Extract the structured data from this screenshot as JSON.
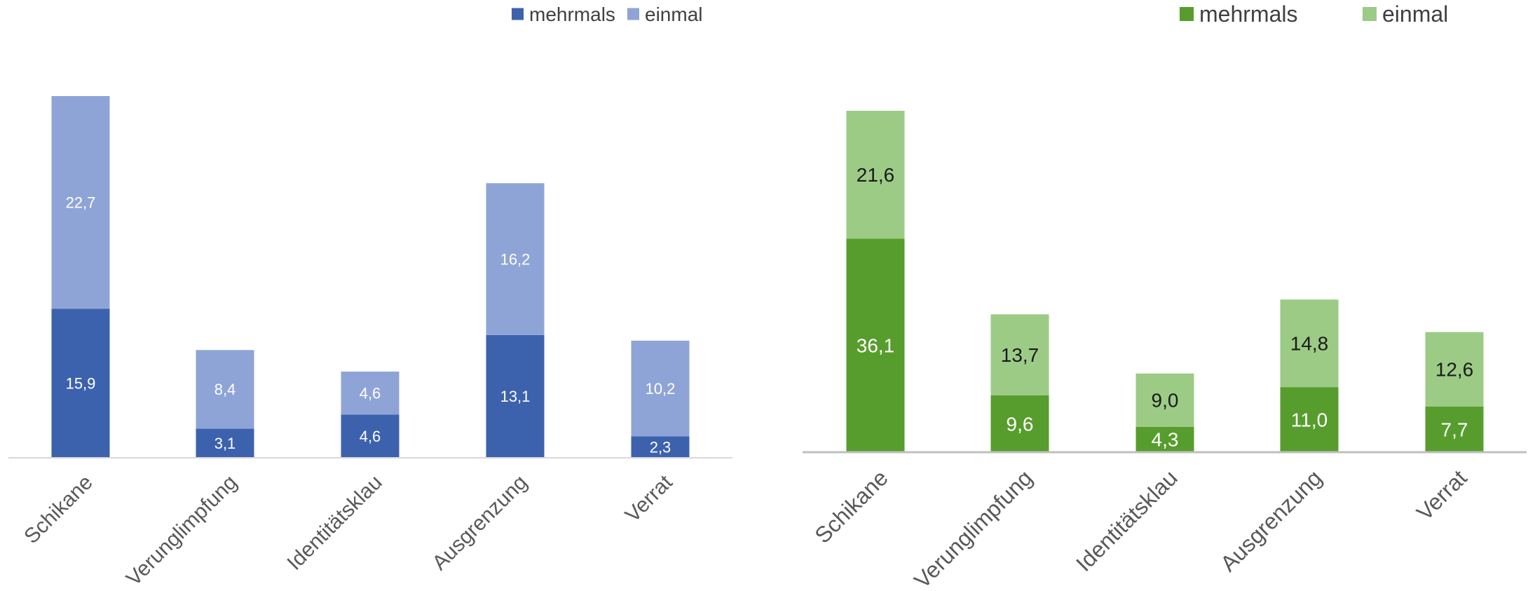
{
  "chart_data": [
    {
      "type": "bar",
      "stacked": true,
      "categories": [
        "Schikane",
        "Verunglimpfung",
        "Identitätsklau",
        "Ausgrenzung",
        "Verrat"
      ],
      "series": [
        {
          "name": "mehrmals",
          "values": [
            15.9,
            3.1,
            4.6,
            13.1,
            2.3
          ],
          "labels": [
            "15,9",
            "3,1",
            "4,6",
            "13,1",
            "2,3"
          ],
          "color": "#3c62ae"
        },
        {
          "name": "einmal",
          "values": [
            22.7,
            8.4,
            4.6,
            16.2,
            10.2
          ],
          "labels": [
            "22,7",
            "8,4",
            "4,6",
            "16,2",
            "10,2"
          ],
          "color": "#8fa4d6"
        }
      ],
      "label_color": "#ffffff",
      "legend_position": "top-right",
      "ylim": [
        0,
        38.6
      ]
    },
    {
      "type": "bar",
      "stacked": true,
      "categories": [
        "Schikane",
        "Verunglimpfung",
        "Identitätsklau",
        "Ausgrenzung",
        "Verrat"
      ],
      "series": [
        {
          "name": "mehrmals",
          "values": [
            36.1,
            9.6,
            4.3,
            11.0,
            7.7
          ],
          "labels": [
            "36,1",
            "9,6",
            "4,3",
            "11,0",
            "7,7"
          ],
          "color": "#579d2d",
          "label_color": "#ffffff"
        },
        {
          "name": "einmal",
          "values": [
            21.6,
            13.7,
            9.0,
            14.8,
            12.6
          ],
          "labels": [
            "21,6",
            "13,7",
            "9,0",
            "14,8",
            "12,6"
          ],
          "color": "#9ccb86",
          "label_color": "#1a1a1a"
        }
      ],
      "legend_position": "top-right",
      "ylim": [
        0,
        57.7
      ]
    }
  ]
}
